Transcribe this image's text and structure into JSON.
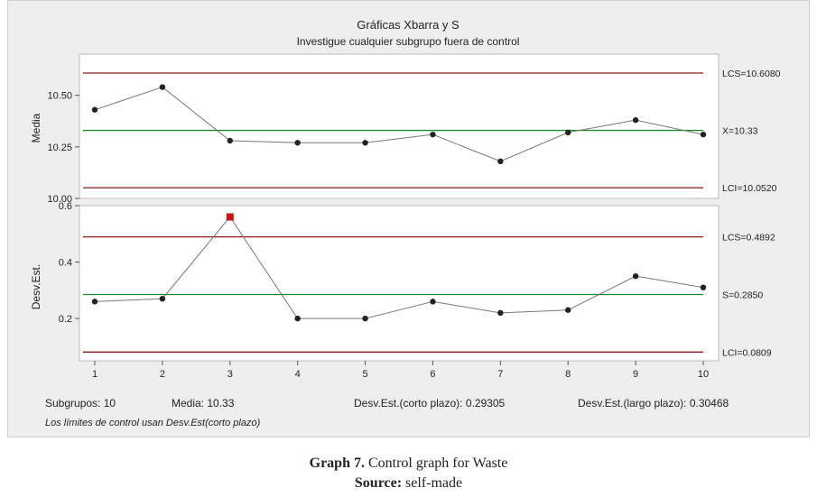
{
  "chart_data": {
    "type": "line",
    "title": "Gráficas Xbarra y S",
    "subtitle": "Investigue cualquier subgrupo fuera de control",
    "x": [
      1,
      2,
      3,
      4,
      5,
      6,
      7,
      8,
      9,
      10
    ],
    "x_ticks": [
      "1",
      "2",
      "3",
      "4",
      "5",
      "6",
      "7",
      "8",
      "9",
      "10"
    ],
    "panels": [
      {
        "ylabel": "Media",
        "ylim": [
          10.0,
          10.7
        ],
        "yticks": [
          "10.00",
          "10.25",
          "10.50"
        ],
        "ytick_values": [
          10.0,
          10.25,
          10.5
        ],
        "values": [
          10.43,
          10.54,
          10.28,
          10.27,
          10.27,
          10.31,
          10.18,
          10.32,
          10.38,
          10.31
        ],
        "ucl": 10.608,
        "center": 10.33,
        "lcl": 10.052,
        "ucl_label": "LCS=10.6080",
        "center_label": "X=10.33",
        "lcl_label": "LCI=10.0520",
        "out_of_control": []
      },
      {
        "ylabel": "Desv.Est.",
        "ylim": [
          0.05,
          0.6
        ],
        "yticks": [
          "0.2",
          "0.4",
          "0.6"
        ],
        "ytick_values": [
          0.2,
          0.4,
          0.6
        ],
        "values": [
          0.26,
          0.27,
          0.56,
          0.2,
          0.2,
          0.26,
          0.22,
          0.23,
          0.35,
          0.31
        ],
        "ucl": 0.4892,
        "center": 0.285,
        "lcl": 0.0809,
        "ucl_label": "LCS=0.4892",
        "center_label": "S=0.2850",
        "lcl_label": "LCI=0.0809",
        "out_of_control": [
          3
        ]
      }
    ],
    "summary": {
      "subgroups": "Subgrupos: 10",
      "mean": "Media: 10.33",
      "stdev_short": "Desv.Est.(corto plazo): 0.29305",
      "stdev_long": "Desv.Est.(largo plazo): 0.30468",
      "note": "Los límites de control usan Desv.Est(corto plazo)"
    },
    "colors": {
      "limits": "#8b1a1a",
      "center": "#1a8a2a",
      "series": "#777777",
      "point": "#222222",
      "out_of_control": "#cc1111"
    },
    "grid": false
  },
  "caption": {
    "graph_label": "Graph 7.",
    "graph_text": " Control graph for Waste",
    "source_label": "Source:",
    "source_text": " self-made"
  }
}
